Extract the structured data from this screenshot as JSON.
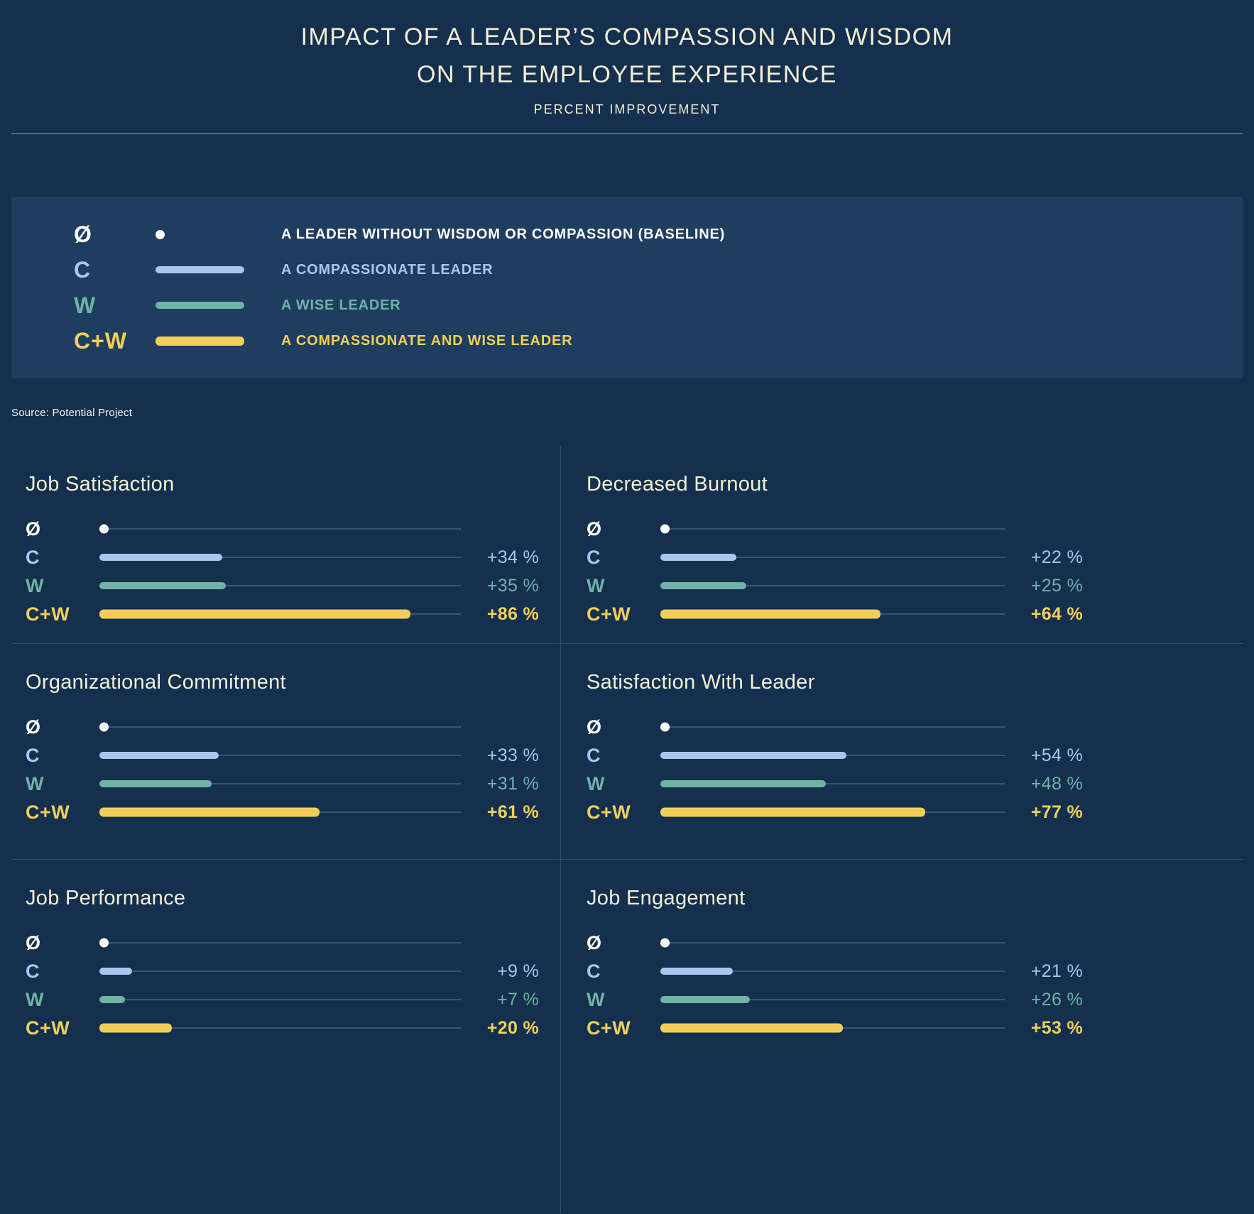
{
  "header": {
    "title_line1": "IMPACT OF A LEADER’S COMPASSION AND WISDOM",
    "title_line2": "ON THE EMPLOYEE EXPERIENCE",
    "subtitle": "PERCENT IMPROVEMENT"
  },
  "legend": {
    "items": [
      {
        "key": "baseline",
        "symbol": "Ø",
        "marker": "dot",
        "label": "A LEADER WITHOUT WISDOM OR COMPASSION (BASELINE)"
      },
      {
        "key": "c",
        "symbol": "C",
        "marker": "bar",
        "label": "A COMPASSIONATE LEADER"
      },
      {
        "key": "w",
        "symbol": "W",
        "marker": "bar",
        "label": "A WISE LEADER"
      },
      {
        "key": "cw",
        "symbol": "C+W",
        "marker": "bar",
        "label": "A COMPASSIONATE AND WISE LEADER"
      }
    ]
  },
  "source": "Source: Potential Project",
  "colors": {
    "background": "#14304E",
    "legend_panel": "#1E3D5F",
    "cream": "#F5EFD6",
    "baseline": "#FFFFFF",
    "compassionate": "#A9C6EF",
    "wise": "#6FB3A7",
    "compassionate_and_wise": "#F2CF5B",
    "track": "#3A5674"
  },
  "chart_data": {
    "type": "bar",
    "title": "Impact of a Leader’s Compassion and Wisdom on the Employee Experience",
    "subtitle": "Percent Improvement",
    "unit": "percent",
    "value_axis_max": 100,
    "series_labels": [
      "Ø",
      "C",
      "W",
      "C+W"
    ],
    "charts": [
      {
        "title": "Job Satisfaction",
        "rows": [
          {
            "key": "baseline",
            "label": "Ø",
            "value": 0,
            "display": ""
          },
          {
            "key": "c",
            "label": "C",
            "value": 34,
            "display": "+34 %"
          },
          {
            "key": "w",
            "label": "W",
            "value": 35,
            "display": "+35 %"
          },
          {
            "key": "cw",
            "label": "C+W",
            "value": 86,
            "display": "+86 %"
          }
        ]
      },
      {
        "title": "Decreased Burnout",
        "rows": [
          {
            "key": "baseline",
            "label": "Ø",
            "value": 0,
            "display": ""
          },
          {
            "key": "c",
            "label": "C",
            "value": 22,
            "display": "+22 %"
          },
          {
            "key": "w",
            "label": "W",
            "value": 25,
            "display": "+25 %"
          },
          {
            "key": "cw",
            "label": "C+W",
            "value": 64,
            "display": "+64 %"
          }
        ]
      },
      {
        "title": "Organizational Commitment",
        "rows": [
          {
            "key": "baseline",
            "label": "Ø",
            "value": 0,
            "display": ""
          },
          {
            "key": "c",
            "label": "C",
            "value": 33,
            "display": "+33 %"
          },
          {
            "key": "w",
            "label": "W",
            "value": 31,
            "display": "+31 %"
          },
          {
            "key": "cw",
            "label": "C+W",
            "value": 61,
            "display": "+61 %"
          }
        ]
      },
      {
        "title": "Satisfaction With Leader",
        "rows": [
          {
            "key": "baseline",
            "label": "Ø",
            "value": 0,
            "display": ""
          },
          {
            "key": "c",
            "label": "C",
            "value": 54,
            "display": "+54 %"
          },
          {
            "key": "w",
            "label": "W",
            "value": 48,
            "display": "+48 %"
          },
          {
            "key": "cw",
            "label": "C+W",
            "value": 77,
            "display": "+77 %"
          }
        ]
      },
      {
        "title": "Job Performance",
        "rows": [
          {
            "key": "baseline",
            "label": "Ø",
            "value": 0,
            "display": ""
          },
          {
            "key": "c",
            "label": "C",
            "value": 9,
            "display": "+9 %"
          },
          {
            "key": "w",
            "label": "W",
            "value": 7,
            "display": "+7 %"
          },
          {
            "key": "cw",
            "label": "C+W",
            "value": 20,
            "display": "+20 %"
          }
        ]
      },
      {
        "title": "Job Engagement",
        "rows": [
          {
            "key": "baseline",
            "label": "Ø",
            "value": 0,
            "display": ""
          },
          {
            "key": "c",
            "label": "C",
            "value": 21,
            "display": "+21 %"
          },
          {
            "key": "w",
            "label": "W",
            "value": 26,
            "display": "+26 %"
          },
          {
            "key": "cw",
            "label": "C+W",
            "value": 53,
            "display": "+53 %"
          }
        ]
      }
    ]
  }
}
